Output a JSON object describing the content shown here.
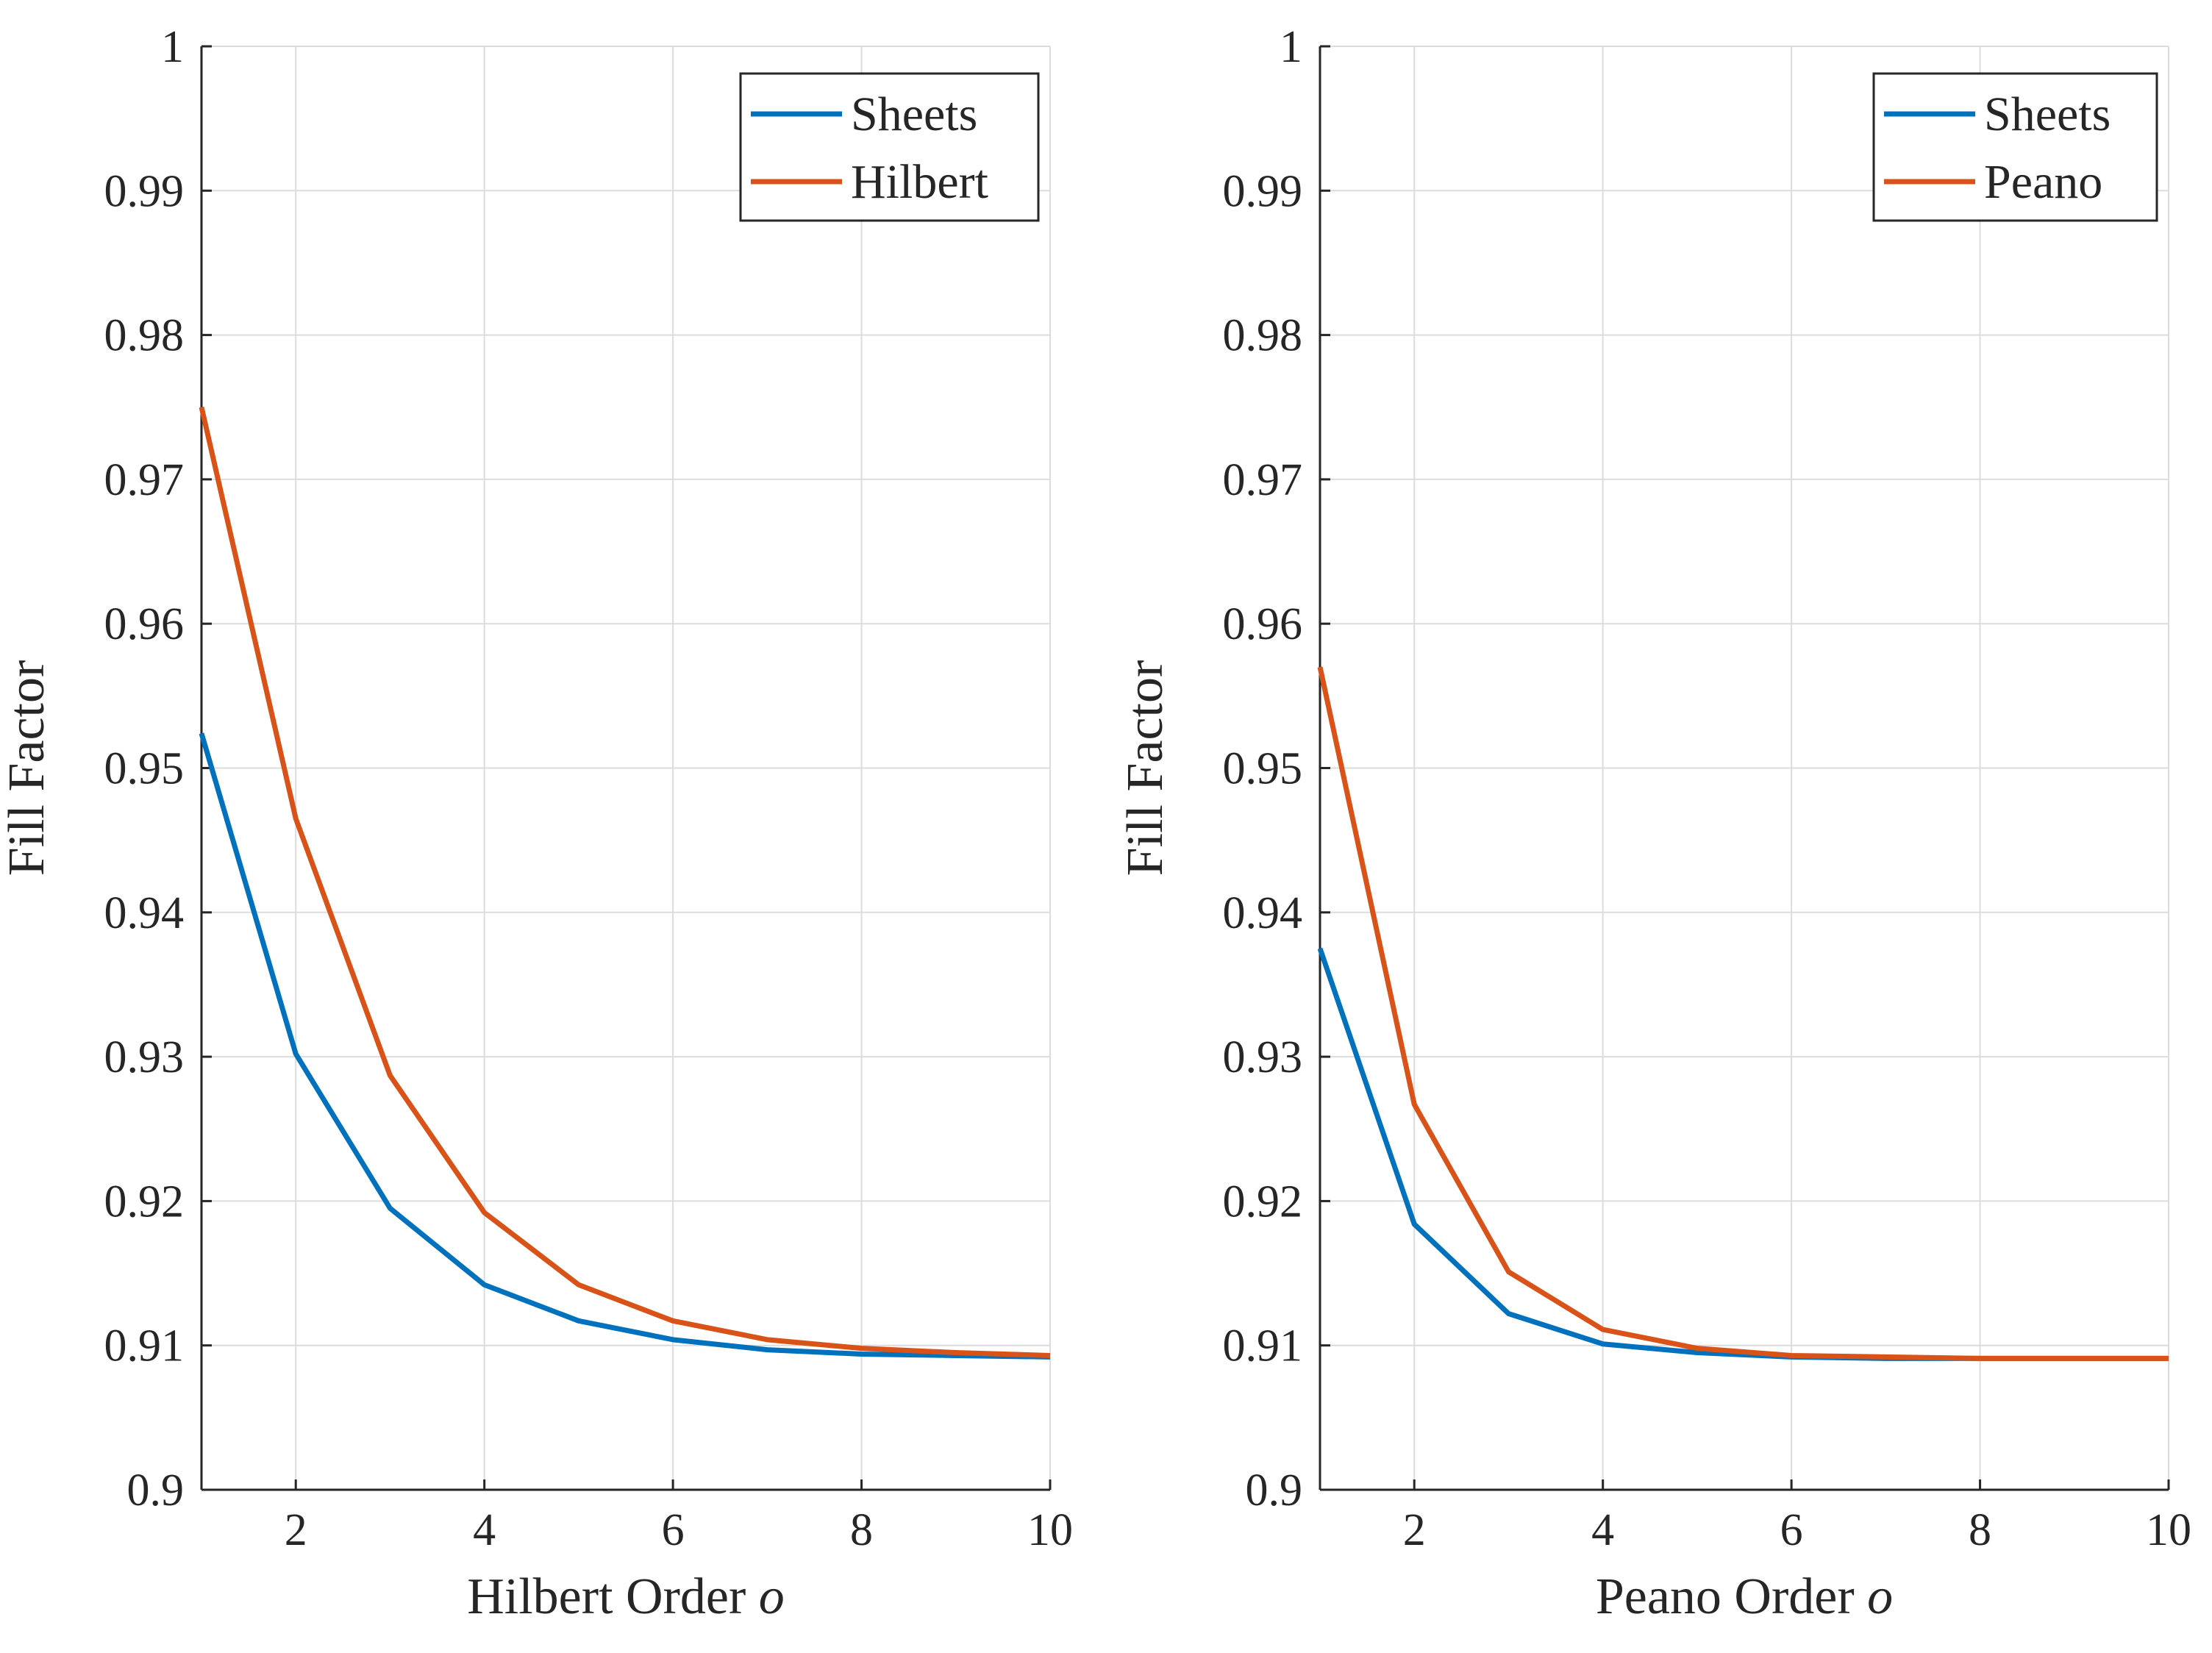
{
  "chart_data": [
    {
      "type": "line",
      "xlabel": "Hilbert Order",
      "xlabel_var": "o",
      "ylabel": "Fill Factor",
      "xlim": [
        1,
        10
      ],
      "ylim": [
        0.9,
        1
      ],
      "xticks": [
        2,
        4,
        6,
        8,
        10
      ],
      "xtick_labels": [
        "2",
        "4",
        "6",
        "8",
        "10"
      ],
      "yticks": [
        0.9,
        0.91,
        0.92,
        0.93,
        0.94,
        0.95,
        0.96,
        0.97,
        0.98,
        0.99,
        1
      ],
      "ytick_labels": [
        "0.9",
        "0.91",
        "0.92",
        "0.93",
        "0.94",
        "0.95",
        "0.96",
        "0.97",
        "0.98",
        "0.99",
        "1"
      ],
      "grid": true,
      "legend_position": "top-right",
      "x": [
        1,
        2,
        3,
        4,
        5,
        6,
        7,
        8,
        9,
        10
      ],
      "series": [
        {
          "name": "Sheets",
          "color": "#0072BD",
          "values": [
            0.9524,
            0.9302,
            0.9195,
            0.9142,
            0.9117,
            0.9104,
            0.9097,
            0.9094,
            0.9093,
            0.9092
          ]
        },
        {
          "name": "Hilbert",
          "color": "#D95319",
          "values": [
            0.975,
            0.9465,
            0.9287,
            0.9192,
            0.9142,
            0.9117,
            0.9104,
            0.9098,
            0.9095,
            0.9093
          ]
        }
      ]
    },
    {
      "type": "line",
      "xlabel": "Peano Order",
      "xlabel_var": "o",
      "ylabel": "Fill Factor",
      "xlim": [
        1,
        10
      ],
      "ylim": [
        0.9,
        1
      ],
      "xticks": [
        2,
        4,
        6,
        8,
        10
      ],
      "xtick_labels": [
        "2",
        "4",
        "6",
        "8",
        "10"
      ],
      "yticks": [
        0.9,
        0.91,
        0.92,
        0.93,
        0.94,
        0.95,
        0.96,
        0.97,
        0.98,
        0.99,
        1
      ],
      "ytick_labels": [
        "0.9",
        "0.91",
        "0.92",
        "0.93",
        "0.94",
        "0.95",
        "0.96",
        "0.97",
        "0.98",
        "0.99",
        "1"
      ],
      "grid": true,
      "legend_position": "top-right",
      "x": [
        1,
        2,
        3,
        4,
        5,
        6,
        7,
        8,
        9,
        10
      ],
      "series": [
        {
          "name": "Sheets",
          "color": "#0072BD",
          "values": [
            0.9375,
            0.9184,
            0.9122,
            0.9101,
            0.9095,
            0.9092,
            0.9091,
            0.9091,
            0.9091,
            0.9091
          ]
        },
        {
          "name": "Peano",
          "color": "#D95319",
          "values": [
            0.957,
            0.9267,
            0.9151,
            0.9111,
            0.9098,
            0.9093,
            0.9092,
            0.9091,
            0.9091,
            0.9091
          ]
        }
      ]
    }
  ]
}
